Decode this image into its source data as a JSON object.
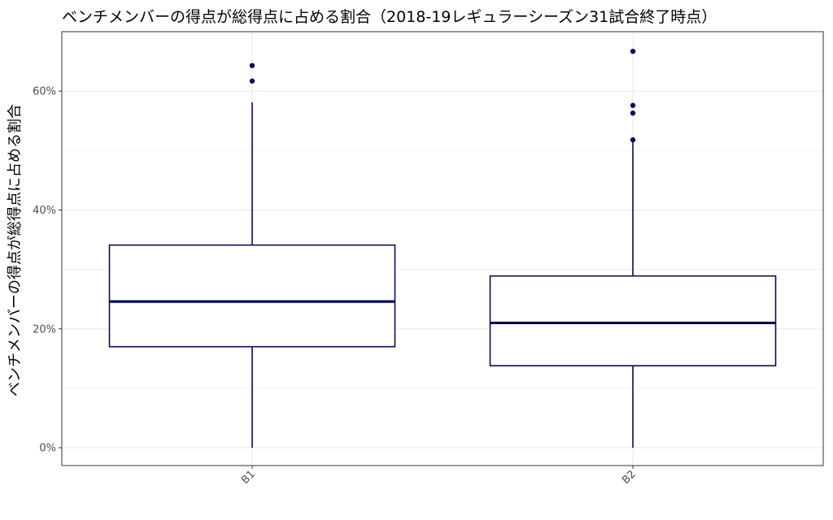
{
  "chart_data": {
    "type": "boxplot",
    "title": "ベンチメンバーの得点が総得点に占める割合（2018-19レギュラーシーズン31試合終了時点）",
    "xlabel": "",
    "ylabel": "ベンチメンバーの得点が総得点に占める割合",
    "ylim": [
      -0.03,
      0.7
    ],
    "yticks": [
      0,
      0.2,
      0.4,
      0.6
    ],
    "ytick_labels": [
      "0%",
      "20%",
      "40%",
      "60%"
    ],
    "grid": true,
    "colors": {
      "box": "#0a0a5a",
      "grid": "#ebebeb",
      "panel_border": "#333333"
    },
    "categories": [
      "B1",
      "B2"
    ],
    "boxes": [
      {
        "category": "B1",
        "min": 0.0,
        "q1": 0.17,
        "median": 0.246,
        "q3": 0.341,
        "max": 0.581,
        "outliers": [
          0.617,
          0.643
        ]
      },
      {
        "category": "B2",
        "min": 0.0,
        "q1": 0.138,
        "median": 0.21,
        "q3": 0.289,
        "max": 0.519,
        "outliers": [
          0.518,
          0.563,
          0.576,
          0.667
        ]
      }
    ]
  }
}
